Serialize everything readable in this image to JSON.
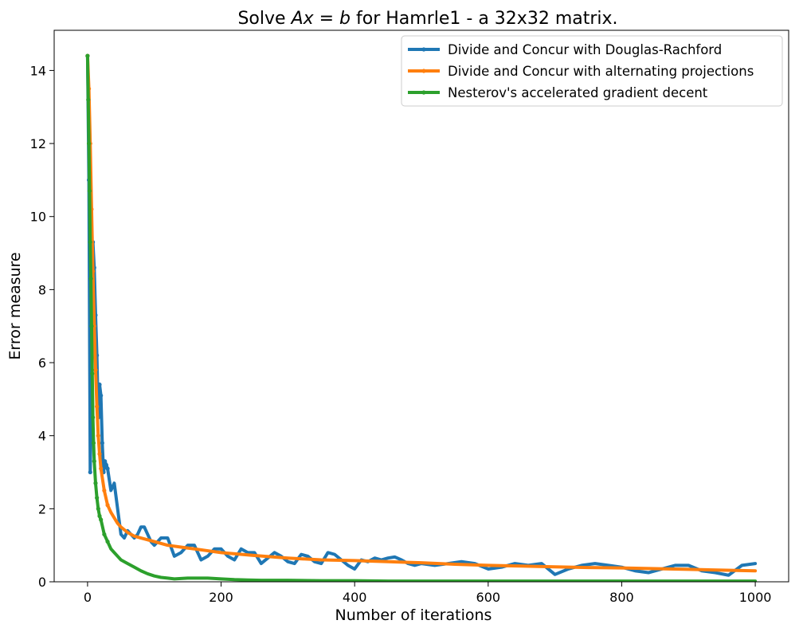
{
  "chart_data": {
    "type": "line",
    "title_prefix": "Solve ",
    "title_math": "Ax = b",
    "title_suffix": " for Hamrle1 - a 32x32 matrix.",
    "xlabel": "Number of iterations",
    "ylabel": "Error measure",
    "xlim": [
      -50,
      1050
    ],
    "ylim": [
      0,
      15.1
    ],
    "xticks": [
      0,
      200,
      400,
      600,
      800,
      1000
    ],
    "yticks": [
      0,
      2,
      4,
      6,
      8,
      10,
      12,
      14
    ],
    "grid": false,
    "legend_position": "top-right",
    "series": [
      {
        "name": "Divide and Concur with Douglas-Rachford",
        "color": "#1f77b4",
        "x": [
          0,
          2,
          4,
          6,
          8,
          10,
          12,
          14,
          16,
          18,
          20,
          22,
          24,
          26,
          28,
          30,
          35,
          40,
          45,
          50,
          55,
          60,
          65,
          70,
          75,
          80,
          85,
          90,
          95,
          100,
          110,
          120,
          130,
          140,
          150,
          160,
          170,
          180,
          190,
          200,
          210,
          220,
          230,
          240,
          250,
          260,
          270,
          280,
          290,
          300,
          310,
          320,
          330,
          340,
          350,
          360,
          370,
          380,
          390,
          400,
          410,
          420,
          430,
          440,
          450,
          460,
          470,
          480,
          490,
          500,
          520,
          540,
          560,
          580,
          600,
          620,
          640,
          660,
          680,
          700,
          720,
          740,
          760,
          780,
          800,
          820,
          840,
          860,
          880,
          900,
          920,
          940,
          960,
          980,
          1000
        ],
        "y": [
          14.4,
          11.0,
          3.0,
          5.5,
          9.3,
          8.6,
          7.3,
          6.2,
          4.5,
          5.4,
          5.1,
          3.8,
          3.0,
          3.3,
          3.2,
          3.1,
          2.5,
          2.7,
          2.0,
          1.3,
          1.2,
          1.4,
          1.3,
          1.2,
          1.3,
          1.5,
          1.5,
          1.3,
          1.1,
          1.0,
          1.2,
          1.2,
          0.7,
          0.8,
          1.0,
          1.0,
          0.6,
          0.7,
          0.9,
          0.9,
          0.7,
          0.6,
          0.9,
          0.8,
          0.8,
          0.5,
          0.65,
          0.8,
          0.7,
          0.55,
          0.5,
          0.75,
          0.7,
          0.55,
          0.5,
          0.8,
          0.75,
          0.6,
          0.45,
          0.35,
          0.6,
          0.55,
          0.65,
          0.6,
          0.65,
          0.68,
          0.6,
          0.5,
          0.45,
          0.5,
          0.45,
          0.5,
          0.55,
          0.5,
          0.35,
          0.4,
          0.5,
          0.45,
          0.5,
          0.2,
          0.35,
          0.45,
          0.5,
          0.45,
          0.4,
          0.3,
          0.25,
          0.35,
          0.45,
          0.45,
          0.3,
          0.25,
          0.18,
          0.45,
          0.5
        ]
      },
      {
        "name": "Divide and Concur with alternating projections",
        "color": "#ff7f0e",
        "x": [
          0,
          2,
          4,
          6,
          8,
          10,
          12,
          14,
          16,
          18,
          20,
          25,
          30,
          35,
          40,
          45,
          50,
          60,
          70,
          80,
          90,
          100,
          120,
          140,
          160,
          180,
          200,
          250,
          300,
          350,
          400,
          450,
          500,
          550,
          600,
          650,
          700,
          750,
          800,
          850,
          900,
          950,
          1000
        ],
        "y": [
          14.4,
          13.5,
          12.0,
          10.2,
          8.5,
          7.0,
          5.8,
          4.8,
          4.0,
          3.5,
          3.1,
          2.5,
          2.1,
          1.9,
          1.75,
          1.6,
          1.5,
          1.35,
          1.25,
          1.2,
          1.15,
          1.1,
          1.0,
          0.95,
          0.9,
          0.85,
          0.8,
          0.72,
          0.65,
          0.6,
          0.58,
          0.55,
          0.52,
          0.48,
          0.45,
          0.43,
          0.41,
          0.39,
          0.38,
          0.36,
          0.34,
          0.32,
          0.3
        ]
      },
      {
        "name": "Nesterov's accelerated gradient decent",
        "color": "#2ca02c",
        "x": [
          0,
          1,
          2,
          3,
          4,
          5,
          6,
          7,
          8,
          9,
          10,
          12,
          14,
          16,
          18,
          20,
          25,
          30,
          35,
          40,
          45,
          50,
          60,
          70,
          80,
          90,
          100,
          110,
          120,
          130,
          140,
          150,
          160,
          170,
          180,
          190,
          200,
          220,
          240,
          260,
          280,
          300,
          350,
          400,
          450,
          500,
          550,
          600,
          650,
          700,
          750,
          800,
          850,
          900,
          950,
          1000
        ],
        "y": [
          14.4,
          13.2,
          12.0,
          10.7,
          9.3,
          8.3,
          7.0,
          5.7,
          4.5,
          3.8,
          3.3,
          2.7,
          2.3,
          2.0,
          1.8,
          1.7,
          1.3,
          1.1,
          0.9,
          0.8,
          0.7,
          0.6,
          0.5,
          0.4,
          0.3,
          0.22,
          0.16,
          0.12,
          0.1,
          0.08,
          0.09,
          0.1,
          0.1,
          0.1,
          0.1,
          0.09,
          0.08,
          0.06,
          0.05,
          0.04,
          0.04,
          0.04,
          0.03,
          0.03,
          0.02,
          0.02,
          0.02,
          0.02,
          0.02,
          0.02,
          0.02,
          0.02,
          0.02,
          0.02,
          0.02,
          0.02
        ]
      }
    ]
  }
}
